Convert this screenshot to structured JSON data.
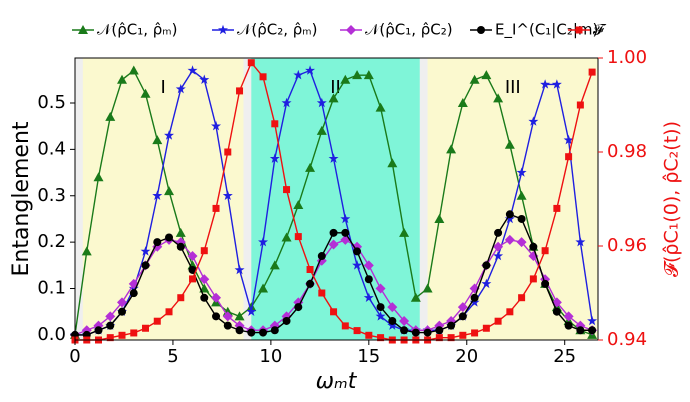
{
  "chart_data": {
    "type": "line",
    "xlabel": "ωₘt",
    "ylabel": "Entanglement",
    "y2label": "𝓕(ρ̂C₁(0), ρ̂C₂(t))",
    "x": [
      0,
      0.6,
      1.2,
      1.8,
      2.4,
      3.0,
      3.6,
      4.2,
      4.8,
      5.4,
      6.0,
      6.6,
      7.2,
      7.8,
      8.4,
      9.0,
      9.6,
      10.2,
      10.8,
      11.4,
      12.0,
      12.6,
      13.2,
      13.8,
      14.4,
      15.0,
      15.6,
      16.2,
      16.8,
      17.4,
      18.0,
      18.6,
      19.2,
      19.8,
      20.4,
      21.0,
      21.6,
      22.2,
      22.8,
      23.4,
      24.0,
      24.6,
      25.2,
      25.8,
      26.4
    ],
    "series": [
      {
        "name": "𝒩(ρ̂C₁, ρ̂ₘ)",
        "color": "#1a7a1a",
        "marker": "triangle",
        "values": [
          0,
          0.18,
          0.34,
          0.47,
          0.55,
          0.57,
          0.52,
          0.42,
          0.31,
          0.22,
          0.15,
          0.1,
          0.07,
          0.05,
          0.04,
          0.06,
          0.1,
          0.15,
          0.21,
          0.28,
          0.36,
          0.44,
          0.51,
          0.55,
          0.56,
          0.56,
          0.49,
          0.37,
          0.22,
          0.08,
          0.1,
          0.25,
          0.4,
          0.5,
          0.55,
          0.56,
          0.51,
          0.41,
          0.3,
          0.19,
          0.11,
          0.06,
          0.03,
          0.01,
          0
        ]
      },
      {
        "name": "𝒩(ρ̂C₂, ρ̂ₘ)",
        "color": "#1f1fe0",
        "marker": "star",
        "values": [
          0,
          0,
          0.01,
          0.02,
          0.05,
          0.1,
          0.18,
          0.3,
          0.43,
          0.53,
          0.57,
          0.55,
          0.45,
          0.3,
          0.14,
          0.05,
          0.2,
          0.38,
          0.5,
          0.56,
          0.57,
          0.5,
          0.38,
          0.25,
          0.15,
          0.08,
          0.04,
          0.02,
          0.01,
          0.01,
          0.01,
          0.01,
          0.02,
          0.04,
          0.07,
          0.11,
          0.17,
          0.25,
          0.35,
          0.46,
          0.54,
          0.54,
          0.42,
          0.2,
          0.03
        ]
      },
      {
        "name": "𝒩(ρ̂C₁, ρ̂C₂)",
        "color": "#b42fd6",
        "marker": "diamond",
        "values": [
          0,
          0.01,
          0.02,
          0.04,
          0.07,
          0.11,
          0.15,
          0.19,
          0.205,
          0.2,
          0.17,
          0.12,
          0.08,
          0.04,
          0.02,
          0.01,
          0.01,
          0.02,
          0.04,
          0.07,
          0.11,
          0.16,
          0.195,
          0.205,
          0.19,
          0.15,
          0.1,
          0.06,
          0.03,
          0.01,
          0.01,
          0.02,
          0.03,
          0.06,
          0.1,
          0.15,
          0.19,
          0.205,
          0.2,
          0.17,
          0.12,
          0.07,
          0.04,
          0.02,
          0.01
        ]
      },
      {
        "name": "E_I^(C₁|C₂|m)",
        "color": "#000000",
        "marker": "circle",
        "values": [
          0,
          0,
          0.01,
          0.02,
          0.05,
          0.09,
          0.15,
          0.2,
          0.21,
          0.19,
          0.14,
          0.08,
          0.04,
          0.02,
          0.01,
          0.005,
          0.005,
          0.01,
          0.03,
          0.06,
          0.11,
          0.17,
          0.22,
          0.22,
          0.18,
          0.12,
          0.06,
          0.03,
          0.01,
          0.005,
          0.005,
          0.01,
          0.02,
          0.04,
          0.08,
          0.15,
          0.22,
          0.26,
          0.25,
          0.19,
          0.11,
          0.05,
          0.02,
          0.01,
          0.01
        ]
      },
      {
        "name": "𝓕",
        "color": "#ee1111",
        "marker": "square",
        "axis": "y2",
        "values": [
          0.94,
          0.94,
          0.94,
          0.9405,
          0.941,
          0.9415,
          0.9425,
          0.944,
          0.946,
          0.949,
          0.953,
          0.959,
          0.968,
          0.98,
          0.993,
          0.999,
          0.996,
          0.986,
          0.972,
          0.962,
          0.955,
          0.95,
          0.946,
          0.943,
          0.942,
          0.941,
          0.9405,
          0.94,
          0.94,
          0.94,
          0.94,
          0.9405,
          0.9405,
          0.941,
          0.9415,
          0.9425,
          0.944,
          0.946,
          0.949,
          0.953,
          0.959,
          0.968,
          0.979,
          0.99,
          0.997
        ]
      }
    ],
    "regions": [
      {
        "label": "I",
        "start": 0.4,
        "end": 8.6,
        "color": "#fbf9cf"
      },
      {
        "label": "II",
        "start": 9.0,
        "end": 17.6,
        "color": "#7ff5d8"
      },
      {
        "label": "III",
        "start": 18.0,
        "end": 26.7,
        "color": "#fbf9cf"
      }
    ],
    "xlim": [
      0,
      26.7
    ],
    "xticks": [
      0,
      5,
      10,
      15,
      20,
      25
    ],
    "ylim": [
      -0.011,
      0.597
    ],
    "yticks": [
      {
        "value": 0,
        "label": "0.0"
      },
      0.1,
      0.2,
      0.3,
      0.4,
      0.5
    ],
    "y2lim": [
      0.94,
      1.0
    ],
    "y2ticks": [
      0.94,
      0.96,
      0.98,
      {
        "value": 1.0,
        "label": "1.00"
      }
    ],
    "y2color": "#ee1111",
    "legend": "top"
  }
}
